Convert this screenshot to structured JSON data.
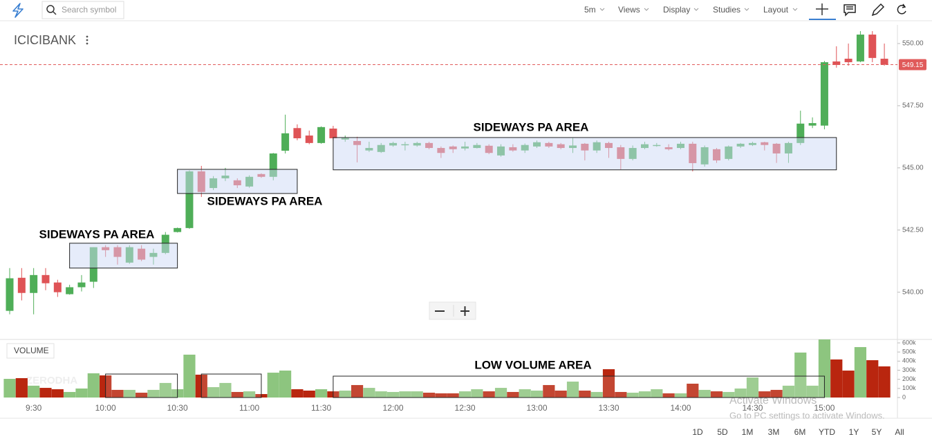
{
  "toolbar": {
    "search_placeholder": "Search symbol",
    "interval": "5m",
    "menus": [
      "Views",
      "Display",
      "Studies",
      "Layout"
    ]
  },
  "chart_data": [
    {
      "type": "candlestick",
      "title": "ICICIBANK",
      "categories": [
        null,
        null,
        "9:30",
        null,
        null,
        null,
        null,
        null,
        "10:00",
        null,
        null,
        null,
        null,
        null,
        "10:30",
        null,
        null,
        null,
        null,
        null,
        "11:00",
        null,
        null,
        null,
        null,
        null,
        "11:30",
        null,
        null,
        null,
        null,
        null,
        "12:00",
        null,
        null,
        null,
        null,
        null,
        "12:30",
        null,
        null,
        null,
        null,
        null,
        "13:00",
        null,
        null,
        null,
        null,
        null,
        "13:30",
        null,
        null,
        null,
        null,
        null,
        "14:00",
        null,
        null,
        null,
        null,
        null,
        "14:30",
        null,
        null,
        null,
        null,
        null,
        "15:00",
        null,
        null,
        null,
        null,
        null
      ],
      "open": [
        539.25,
        540.58,
        539.97,
        540.69,
        540.39,
        539.92,
        540.2,
        540.42,
        541.81,
        541.81,
        541.19,
        541.75,
        541.42,
        541.58,
        542.42,
        542.58,
        544.86,
        544.19,
        544.58,
        544.5,
        544.25,
        544.75,
        544.64,
        545.69,
        546.6,
        546.3,
        546.0,
        546.58,
        546.14,
        546.08,
        545.7,
        545.64,
        545.9,
        545.92,
        545.9,
        546.0,
        545.8,
        545.86,
        545.78,
        545.8,
        545.89,
        545.5,
        545.83,
        545.7,
        545.86,
        546.0,
        545.95,
        545.8,
        545.97,
        545.7,
        546.0,
        545.83,
        545.36,
        545.8,
        545.9,
        545.83,
        545.8,
        545.97,
        545.14,
        545.75,
        545.36,
        545.86,
        545.92,
        546.03,
        545.97,
        545.58,
        546.0,
        546.7,
        546.7,
        549.28,
        549.39,
        549.28,
        550.36,
        549.39
      ],
      "high": [
        540.97,
        540.97,
        540.97,
        540.97,
        540.5,
        540.3,
        540.69,
        541.81,
        541.89,
        541.89,
        541.89,
        541.89,
        541.75,
        542.42,
        542.6,
        544.9,
        545.08,
        544.67,
        545.0,
        544.58,
        544.7,
        544.78,
        545.6,
        547.14,
        546.75,
        546.5,
        546.67,
        546.69,
        546.3,
        546.25,
        546.05,
        546.0,
        546.05,
        546.05,
        546.05,
        546.05,
        545.86,
        545.9,
        546.05,
        546.0,
        545.95,
        545.95,
        545.95,
        545.98,
        546.1,
        546.05,
        546.0,
        546.2,
        546.0,
        546.1,
        546.05,
        545.92,
        545.9,
        546.05,
        546.0,
        545.95,
        546.05,
        546.05,
        545.9,
        545.8,
        545.9,
        546.0,
        546.05,
        546.05,
        546.0,
        546.05,
        547.3,
        547.03,
        549.3,
        549.89,
        550.0,
        550.5,
        550.5,
        550.0
      ],
      "low": [
        539.11,
        539.67,
        539.11,
        540.08,
        539.81,
        539.9,
        540.03,
        540.17,
        541.42,
        541.11,
        541.14,
        541.25,
        541.11,
        541.53,
        542.4,
        542.55,
        543.83,
        544.11,
        544.47,
        544.19,
        544.2,
        544.6,
        544.5,
        545.58,
        546.11,
        545.95,
        545.97,
        546.1,
        546.05,
        545.22,
        545.64,
        545.6,
        545.85,
        545.7,
        545.85,
        545.75,
        545.4,
        545.6,
        545.7,
        545.78,
        545.55,
        545.45,
        545.65,
        545.6,
        545.8,
        545.8,
        545.75,
        545.6,
        545.3,
        545.6,
        545.4,
        544.94,
        545.3,
        545.75,
        545.85,
        545.7,
        545.75,
        544.86,
        545.05,
        545.2,
        545.3,
        545.8,
        545.88,
        545.7,
        545.2,
        545.2,
        545.92,
        546.6,
        546.55,
        549.03,
        549.11,
        549.25,
        549.25,
        549.11
      ],
      "close": [
        540.56,
        539.97,
        540.69,
        540.36,
        540.0,
        540.2,
        540.39,
        541.81,
        541.69,
        541.42,
        541.81,
        541.31,
        541.58,
        542.31,
        542.58,
        544.86,
        544.03,
        544.58,
        544.69,
        544.3,
        544.64,
        544.64,
        545.58,
        546.39,
        546.19,
        546.0,
        546.64,
        546.19,
        546.2,
        545.92,
        545.8,
        545.92,
        546.0,
        545.95,
        546.0,
        545.8,
        545.6,
        545.75,
        545.86,
        545.92,
        545.6,
        545.86,
        545.7,
        545.92,
        546.03,
        545.86,
        545.8,
        545.9,
        545.7,
        546.03,
        545.8,
        545.36,
        545.8,
        545.95,
        545.92,
        545.75,
        545.97,
        545.19,
        545.83,
        545.3,
        545.86,
        545.97,
        546.0,
        545.92,
        545.58,
        546.0,
        546.78,
        546.8,
        549.25,
        549.14,
        549.25,
        550.36,
        549.42,
        549.15
      ],
      "color_up": "#4fae58",
      "color_down": "#df5356",
      "ylim": [
        538.1,
        550.75
      ],
      "yticks": [
        {
          "value": 540,
          "label": "540.00"
        },
        {
          "value": 542.5,
          "label": "542.50"
        },
        {
          "value": 545,
          "label": "545.00"
        },
        {
          "value": 547.5,
          "label": "547.50"
        },
        {
          "value": 550,
          "label": "550.00"
        }
      ],
      "last_price": 549.15,
      "annotations": [
        {
          "text": "SIDEWAYS PA AREA",
          "from": 5,
          "to": 14,
          "low": 540.97,
          "high": 541.97
        },
        {
          "text": "SIDEWAYS PA AREA",
          "from": 14,
          "to": 24,
          "low": 543.97,
          "high": 544.94
        },
        {
          "text": "SIDEWAYS PA AREA",
          "from": 27,
          "to": 69,
          "low": 544.92,
          "high": 546.22
        }
      ]
    },
    {
      "type": "bar",
      "title": "VOLUME",
      "values": [
        205000,
        213000,
        130000,
        106000,
        91000,
        61000,
        99000,
        266000,
        243000,
        84000,
        84000,
        53000,
        84000,
        160000,
        91000,
        471000,
        251000,
        114000,
        160000,
        61000,
        68000,
        38000,
        273000,
        296000,
        91000,
        76000,
        91000,
        68000,
        76000,
        137000,
        106000,
        68000,
        61000,
        68000,
        68000,
        53000,
        46000,
        46000,
        68000,
        91000,
        68000,
        106000,
        61000,
        91000,
        76000,
        137000,
        76000,
        175000,
        76000,
        61000,
        311000,
        61000,
        53000,
        68000,
        91000,
        46000,
        46000,
        152000,
        84000,
        68000,
        61000,
        99000,
        220000,
        68000,
        84000,
        130000,
        494000,
        130000,
        638000,
        418000,
        296000,
        554000,
        410000,
        342000
      ],
      "color_up": "#8dc57f",
      "color_down": "#b9260f",
      "ylim": [
        0,
        638000
      ],
      "yticks": [
        0,
        {
          "value": 100000,
          "label": "100k"
        },
        {
          "value": 200000,
          "label": "200k"
        },
        {
          "value": 300000,
          "label": "300k"
        },
        {
          "value": 400000,
          "label": "400k"
        },
        {
          "value": 500000,
          "label": "500k"
        },
        {
          "value": 600000,
          "label": "600k"
        }
      ],
      "annotations": [
        {
          "text": "LOW VOLUME AREA",
          "from": 27,
          "to": 68,
          "low": 0,
          "high": 235000
        },
        {
          "from": 8,
          "to": 14,
          "low": 0,
          "high": 258000
        },
        {
          "from": 16,
          "to": 21,
          "low": 0,
          "high": 258000
        }
      ]
    }
  ],
  "watermark": "ZERODHA",
  "range_buttons": [
    "1D",
    "5D",
    "1M",
    "3M",
    "6M",
    "YTD",
    "1Y",
    "5Y",
    "All"
  ],
  "activation": {
    "title": "Activate Windows",
    "subtitle": "Go to PC settings to activate Windows."
  }
}
